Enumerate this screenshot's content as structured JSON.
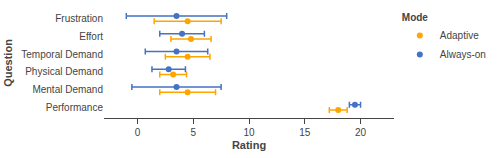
{
  "chart_data": {
    "type": "errorbar",
    "categories": [
      "Frustration",
      "Effort",
      "Temporal Demand",
      "Physical Demand",
      "Mental Demand",
      "Performance"
    ],
    "series": [
      {
        "name": "Adaptive",
        "color": "#FFA500",
        "marker": "circle",
        "values": [
          4.5,
          4.8,
          4.5,
          3.2,
          4.5,
          18.0
        ],
        "errors": [
          3.0,
          1.8,
          2.0,
          1.2,
          2.5,
          0.8
        ]
      },
      {
        "name": "Always-on",
        "color": "#4472C4",
        "marker": "circle",
        "values": [
          3.5,
          4.0,
          3.5,
          2.8,
          3.5,
          19.5
        ],
        "errors": [
          4.5,
          2.0,
          2.8,
          1.5,
          4.0,
          0.5
        ]
      }
    ],
    "orientation": "horizontal",
    "x_label": "Rating",
    "y_label": "Question",
    "legend_title": "Mode",
    "legend": "upper right",
    "xlim": [
      -3,
      23
    ],
    "xticks": [
      0,
      5,
      10,
      15,
      20
    ],
    "grid": false
  }
}
